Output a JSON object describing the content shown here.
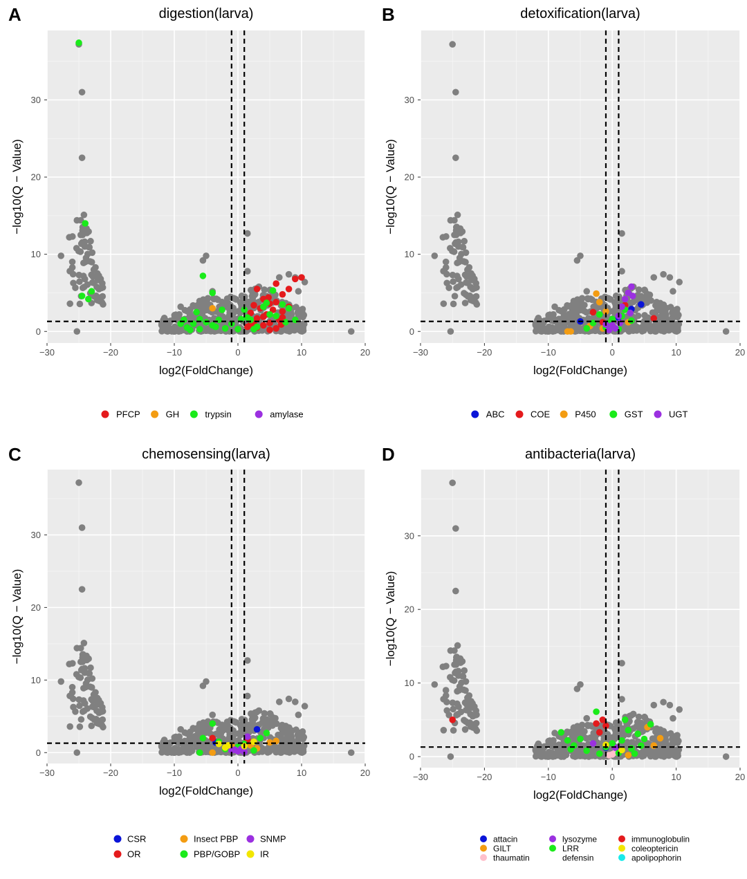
{
  "chart_data": [
    {
      "type": "scatter",
      "letter": "A",
      "title": "digestion(larva)",
      "xlabel": "log2(FoldChange)",
      "ylabel": "−log10(Q − Value)",
      "xlim": [
        -30,
        20
      ],
      "ylim": [
        -1.5,
        39
      ],
      "xticks": [
        -30,
        -20,
        -10,
        0,
        10,
        20
      ],
      "yticks": [
        0,
        10,
        20,
        30
      ],
      "xtick_labels": [
        "−30",
        "−20",
        "−10",
        "0",
        "10",
        "20"
      ],
      "ytick_labels": [
        "0",
        "10",
        "20",
        "30"
      ],
      "thresholds": {
        "x": [
          -1,
          1
        ],
        "y": 1.3
      },
      "grid": true,
      "legend_position": "bottom",
      "legend_layout": "row",
      "background_color": "#ebebeb",
      "background_series_color": "#808080",
      "series": [
        {
          "name": "PFCP",
          "color": "#e41a1c",
          "points": [
            [
              3,
              5.5
            ],
            [
              4,
              4.2
            ],
            [
              5,
              3.6
            ],
            [
              6,
              6.2
            ],
            [
              7,
              4.8
            ],
            [
              8,
              5.5
            ],
            [
              9,
              6.8
            ],
            [
              10,
              7
            ],
            [
              3.5,
              3
            ],
            [
              4.5,
              2.2
            ],
            [
              5.5,
              2.8
            ],
            [
              6.5,
              1.5
            ],
            [
              2.5,
              1.2
            ],
            [
              3,
              0.5
            ],
            [
              4,
              0.8
            ],
            [
              5,
              1.1
            ],
            [
              6,
              0.4
            ],
            [
              7,
              1.8
            ],
            [
              2,
              2.4
            ],
            [
              8,
              3.2
            ],
            [
              6,
              3.8
            ],
            [
              4,
              1.9
            ],
            [
              2,
              0.9
            ],
            [
              5,
              0.2
            ],
            [
              7,
              2.6
            ],
            [
              3,
              1.7
            ],
            [
              1.5,
              0.6
            ],
            [
              2.5,
              3.4
            ],
            [
              6.8,
              0.9
            ],
            [
              4.8,
              4.4
            ]
          ]
        },
        {
          "name": "GH",
          "color": "#f39c12",
          "points": [
            [
              -4,
              3
            ]
          ]
        },
        {
          "name": "trypsin",
          "color": "#1aeb1a",
          "points": [
            [
              -25,
              37.4
            ],
            [
              -24,
              14
            ],
            [
              -23,
              5.2
            ],
            [
              -24.5,
              4.6
            ],
            [
              -23.5,
              4.2
            ],
            [
              -5.5,
              7.2
            ],
            [
              -4,
              5
            ],
            [
              -6.5,
              2.5
            ],
            [
              -9,
              1
            ],
            [
              -8,
              0.5
            ],
            [
              -7,
              1
            ],
            [
              -6,
              0.3
            ],
            [
              -5,
              1.2
            ],
            [
              -4,
              0.8
            ],
            [
              -3,
              1.5
            ],
            [
              -2,
              0.4
            ],
            [
              -1,
              1
            ],
            [
              0,
              0.3
            ],
            [
              1,
              2.8
            ],
            [
              2,
              1.5
            ],
            [
              3,
              0.6
            ],
            [
              4,
              3.2
            ],
            [
              5,
              2.2
            ],
            [
              6,
              2
            ],
            [
              7,
              3.5
            ],
            [
              8,
              3
            ],
            [
              9,
              1.5
            ],
            [
              7.5,
              1.2
            ],
            [
              -8.5,
              1.5
            ],
            [
              -7.5,
              0.2
            ],
            [
              -2.5,
              2.8
            ],
            [
              1.5,
              1.8
            ],
            [
              5.5,
              5.3
            ],
            [
              4.5,
              3.7
            ],
            [
              -6,
              1.6
            ],
            [
              -3.5,
              0.6
            ],
            [
              0.5,
              1.6
            ],
            [
              2.5,
              0.3
            ]
          ]
        },
        {
          "name": "amylase",
          "color": "#9b30e0",
          "points": []
        }
      ]
    },
    {
      "type": "scatter",
      "letter": "B",
      "title": "detoxification(larva)",
      "xlabel": "log2(FoldChange)",
      "ylabel": "−log10(Q − Value)",
      "xlim": [
        -30,
        20
      ],
      "ylim": [
        -1.5,
        39
      ],
      "xticks": [
        -30,
        -20,
        -10,
        0,
        10,
        20
      ],
      "yticks": [
        0,
        10,
        20,
        30
      ],
      "xtick_labels": [
        "−30",
        "−20",
        "−10",
        "0",
        "10",
        "20"
      ],
      "ytick_labels": [
        "0",
        "10",
        "20",
        "30"
      ],
      "thresholds": {
        "x": [
          -1,
          1
        ],
        "y": 1.3
      },
      "grid": true,
      "legend_position": "bottom",
      "legend_layout": "row",
      "background_color": "#ebebeb",
      "background_series_color": "#808080",
      "series": [
        {
          "name": "ABC",
          "color": "#0a14d8",
          "points": [
            [
              -5,
              1.3
            ],
            [
              4.5,
              3.5
            ],
            [
              1,
              1.8
            ],
            [
              3,
              2.9
            ]
          ]
        },
        {
          "name": "COE",
          "color": "#e41a1c",
          "points": [
            [
              -3,
              2.5
            ],
            [
              6.5,
              1.7
            ],
            [
              -1.5,
              1.2
            ],
            [
              2,
              3.4
            ]
          ]
        },
        {
          "name": "P450",
          "color": "#f39c12",
          "points": [
            [
              -7,
              0
            ],
            [
              -6.5,
              0
            ],
            [
              -2.5,
              4.9
            ],
            [
              -2,
              3.8
            ],
            [
              -1,
              2.6
            ],
            [
              -3.5,
              0.7
            ],
            [
              2.5,
              1.2
            ],
            [
              -1.5,
              0.4
            ]
          ]
        },
        {
          "name": "GST",
          "color": "#1aeb1a",
          "points": [
            [
              -3,
              1.1
            ],
            [
              -2,
              2.2
            ],
            [
              -1,
              0.5
            ],
            [
              0,
              1.6
            ],
            [
              1,
              0.3
            ],
            [
              2,
              2.8
            ],
            [
              3,
              1.4
            ],
            [
              -4,
              0.4
            ],
            [
              1.5,
              2
            ],
            [
              -0.5,
              1.1
            ]
          ]
        },
        {
          "name": "UGT",
          "color": "#9b30e0",
          "points": [
            [
              3,
              5.8
            ],
            [
              2.5,
              5
            ],
            [
              2,
              4.2
            ],
            [
              1.5,
              3.2
            ],
            [
              1,
              2
            ],
            [
              0,
              0.8
            ],
            [
              -0.5,
              0.2
            ],
            [
              -1,
              0.9
            ],
            [
              3.2,
              4.6
            ],
            [
              2.8,
              2.4
            ],
            [
              0.5,
              0.4
            ],
            [
              1.2,
              1.1
            ]
          ]
        }
      ]
    },
    {
      "type": "scatter",
      "letter": "C",
      "title": "chemosensing(larva)",
      "xlabel": "log2(FoldChange)",
      "ylabel": "−log10(Q − Value)",
      "xlim": [
        -30,
        20
      ],
      "ylim": [
        -1.5,
        39
      ],
      "xticks": [
        -30,
        -20,
        -10,
        0,
        10,
        20
      ],
      "yticks": [
        0,
        10,
        20,
        30
      ],
      "xtick_labels": [
        "−30",
        "−20",
        "−10",
        "0",
        "10",
        "20"
      ],
      "ytick_labels": [
        "0",
        "10",
        "20",
        "30"
      ],
      "thresholds": {
        "x": [
          -1,
          1
        ],
        "y": 1.3
      },
      "grid": true,
      "legend_position": "bottom",
      "legend_layout": "grid-3x2",
      "background_color": "#ebebeb",
      "background_series_color": "#808080",
      "series": [
        {
          "name": "CSR",
          "color": "#0a14d8",
          "points": [
            [
              3,
              3.2
            ],
            [
              -3.5,
              1.4
            ]
          ]
        },
        {
          "name": "OR",
          "color": "#e41a1c",
          "points": [
            [
              -4,
              2
            ],
            [
              1.5,
              1.8
            ]
          ]
        },
        {
          "name": "Insect PBP",
          "color": "#f39c12",
          "points": [
            [
              -4,
              0
            ],
            [
              2,
              1
            ],
            [
              5,
              1.4
            ],
            [
              6,
              1.6
            ],
            [
              -1,
              1
            ],
            [
              3,
              0.6
            ]
          ]
        },
        {
          "name": "PBP/GOBP",
          "color": "#1aeb1a",
          "points": [
            [
              -4,
              4
            ],
            [
              -6,
              0
            ],
            [
              -5.5,
              2
            ],
            [
              4.5,
              2.7
            ],
            [
              2.5,
              0.3
            ],
            [
              -2,
              0.5
            ],
            [
              1,
              1.2
            ],
            [
              -3,
              1.5
            ],
            [
              3.5,
              2
            ],
            [
              0,
              0.8
            ]
          ]
        },
        {
          "name": "SNMP",
          "color": "#9b30e0",
          "points": [
            [
              -0.5,
              0.4
            ],
            [
              0,
              0.2
            ],
            [
              0.5,
              0.5
            ],
            [
              1,
              0.1
            ],
            [
              -1,
              0.3
            ],
            [
              1.5,
              2.2
            ]
          ]
        },
        {
          "name": "IR",
          "color": "#f2e600",
          "points": [
            [
              -3,
              1.2
            ],
            [
              -1.5,
              1
            ],
            [
              2.5,
              1.5
            ],
            [
              -2,
              0.7
            ],
            [
              1,
              0.9
            ]
          ]
        }
      ]
    },
    {
      "type": "scatter",
      "letter": "D",
      "title": "antibacteria(larva)",
      "xlabel": "log2(FoldChange)",
      "ylabel": "−log10(Q − Value)",
      "xlim": [
        -30,
        20
      ],
      "ylim": [
        -1.5,
        39
      ],
      "xticks": [
        -30,
        -20,
        -10,
        0,
        10,
        20
      ],
      "yticks": [
        0,
        10,
        20,
        30
      ],
      "xtick_labels": [
        "−30",
        "−20",
        "−10",
        "0",
        "10",
        "20"
      ],
      "ytick_labels": [
        "0",
        "10",
        "20",
        "30"
      ],
      "thresholds": {
        "x": [
          -1,
          1
        ],
        "y": 1.3
      },
      "grid": true,
      "legend_position": "bottom",
      "legend_layout": "grid-3x3",
      "background_color": "#ebebeb",
      "background_series_color": "#808080",
      "series": [
        {
          "name": "attacin",
          "color": "#0a14d8",
          "points": [
            [
              -1,
              1.2
            ]
          ]
        },
        {
          "name": "GILT",
          "color": "#f39c12",
          "points": [
            [
              5.5,
              4
            ],
            [
              7.5,
              2.5
            ],
            [
              6.5,
              1.5
            ],
            [
              2.5,
              0.2
            ]
          ]
        },
        {
          "name": "thaumatin",
          "color": "#ffc0cb",
          "points": [
            [
              0,
              0.3
            ],
            [
              0.5,
              0.6
            ],
            [
              -0.5,
              0.2
            ]
          ]
        },
        {
          "name": "lysozyme",
          "color": "#9b30e0",
          "points": [
            [
              -3,
              1.8
            ],
            [
              0.5,
              1.2
            ]
          ]
        },
        {
          "name": "LRR",
          "color": "#1aeb1a",
          "points": [
            [
              -2.5,
              6.1
            ],
            [
              -8,
              3.3
            ],
            [
              -7,
              2.2
            ],
            [
              -6,
              1.5
            ],
            [
              -5,
              2.4
            ],
            [
              -4,
              0.8
            ],
            [
              -2,
              0.4
            ],
            [
              -1,
              1.3
            ],
            [
              1,
              0.5
            ],
            [
              2,
              5
            ],
            [
              3,
              1.1
            ],
            [
              4,
              3.1
            ],
            [
              5,
              2.4
            ],
            [
              6,
              4.4
            ],
            [
              1.5,
              2.2
            ],
            [
              4.5,
              1.5
            ],
            [
              3.5,
              0.4
            ],
            [
              -6.5,
              1
            ],
            [
              0,
              1.8
            ],
            [
              2.5,
              3.6
            ]
          ]
        },
        {
          "name": "defensin",
          "color": "#ffffff",
          "points": []
        },
        {
          "name": "immunoglobulin",
          "color": "#e41a1c",
          "points": [
            [
              -25,
              5
            ],
            [
              -2,
              3.3
            ],
            [
              -1.5,
              5
            ],
            [
              -1,
              4.2
            ],
            [
              -2.5,
              4.5
            ]
          ]
        },
        {
          "name": "coleoptericin",
          "color": "#f2e600",
          "points": [
            [
              -1,
              1.6
            ],
            [
              1.5,
              0.9
            ]
          ]
        },
        {
          "name": "apolipophorin",
          "color": "#1aeaea",
          "points": []
        }
      ]
    }
  ]
}
